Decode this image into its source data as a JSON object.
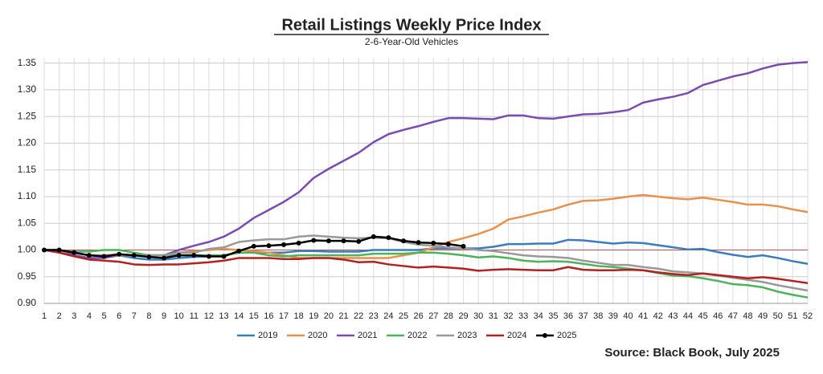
{
  "chart_data": {
    "type": "line",
    "title": "Retail Listings Weekly Price Index",
    "subtitle": "2-6-Year-Old Vehicles",
    "source": "Source: Black Book, July 2025",
    "categories": [
      "1",
      "2",
      "3",
      "4",
      "5",
      "6",
      "7",
      "8",
      "9",
      "10",
      "11",
      "12",
      "13",
      "14",
      "15",
      "16",
      "17",
      "18",
      "19",
      "20",
      "21",
      "22",
      "23",
      "24",
      "25",
      "26",
      "27",
      "28",
      "29",
      "30",
      "31",
      "32",
      "33",
      "34",
      "35",
      "36",
      "37",
      "38",
      "39",
      "40",
      "41",
      "42",
      "43",
      "44",
      "45",
      "46",
      "47",
      "48",
      "49",
      "50",
      "51",
      "52"
    ],
    "ylim": [
      0.9,
      1.36
    ],
    "yticks": [
      {
        "value": 0.9,
        "label": "0.90"
      },
      0.95,
      {
        "value": 1.0,
        "label": "1.00"
      },
      1.05,
      {
        "value": 1.1,
        "label": "1.10"
      },
      1.15,
      {
        "value": 1.2,
        "label": "1.20"
      },
      1.25,
      {
        "value": 1.3,
        "label": "1.30"
      },
      1.35
    ],
    "grid": true,
    "reference_line": {
      "value": 1,
      "color": "#c0504d"
    },
    "legend": "bottom",
    "series": [
      {
        "name": "2019",
        "color": "#3a7dbf",
        "values": [
          1.0,
          0.998,
          0.995,
          0.99,
          0.99,
          0.99,
          0.985,
          0.982,
          0.982,
          0.985,
          0.987,
          0.988,
          0.99,
          0.995,
          0.995,
          0.995,
          0.995,
          0.998,
          0.998,
          0.997,
          0.997,
          0.997,
          1.0,
          1.0,
          1.0,
          1.0,
          1.003,
          1.003,
          1.003,
          1.003,
          1.006,
          1.011,
          1.011,
          1.012,
          1.012,
          1.019,
          1.018,
          1.015,
          1.012,
          1.014,
          1.013,
          1.009,
          1.005,
          1.001,
          1.002,
          0.996,
          0.991,
          0.987,
          0.99,
          0.985,
          0.979,
          0.974
        ]
      },
      {
        "name": "2020",
        "color": "#e8914a",
        "values": [
          1.0,
          0.998,
          0.995,
          0.99,
          0.99,
          0.992,
          0.99,
          0.99,
          0.99,
          0.995,
          0.998,
          1.0,
          1.002,
          1.0,
          0.998,
          0.995,
          0.99,
          0.985,
          0.985,
          0.985,
          0.985,
          0.985,
          0.985,
          0.985,
          0.99,
          0.995,
          1.005,
          1.015,
          1.022,
          1.03,
          1.04,
          1.057,
          1.063,
          1.07,
          1.076,
          1.085,
          1.092,
          1.093,
          1.096,
          1.1,
          1.103,
          1.1,
          1.097,
          1.095,
          1.098,
          1.094,
          1.09,
          1.085,
          1.085,
          1.082,
          1.076,
          1.071
        ]
      },
      {
        "name": "2021",
        "color": "#7a4bb0",
        "values": [
          1.0,
          1.0,
          0.99,
          0.985,
          0.985,
          0.99,
          0.99,
          0.99,
          0.99,
          1.0,
          1.008,
          1.015,
          1.025,
          1.04,
          1.06,
          1.075,
          1.09,
          1.108,
          1.135,
          1.152,
          1.167,
          1.182,
          1.202,
          1.217,
          1.225,
          1.232,
          1.24,
          1.247,
          1.247,
          1.246,
          1.245,
          1.252,
          1.252,
          1.247,
          1.246,
          1.25,
          1.254,
          1.255,
          1.258,
          1.262,
          1.276,
          1.282,
          1.287,
          1.294,
          1.309,
          1.317,
          1.325,
          1.331,
          1.34,
          1.347,
          1.35,
          1.352
        ]
      },
      {
        "name": "2022",
        "color": "#4cb35a",
        "values": [
          1.0,
          0.998,
          0.997,
          0.997,
          1.0,
          1.0,
          0.995,
          0.99,
          0.99,
          0.99,
          0.99,
          0.99,
          0.99,
          0.995,
          0.995,
          0.99,
          0.988,
          0.99,
          0.99,
          0.99,
          0.99,
          0.99,
          0.993,
          0.993,
          0.993,
          0.995,
          0.995,
          0.993,
          0.99,
          0.986,
          0.988,
          0.985,
          0.98,
          0.978,
          0.979,
          0.978,
          0.974,
          0.97,
          0.968,
          0.965,
          0.962,
          0.957,
          0.952,
          0.951,
          0.947,
          0.942,
          0.936,
          0.934,
          0.93,
          0.922,
          0.916,
          0.911
        ]
      },
      {
        "name": "2023",
        "color": "#999999",
        "values": [
          1.0,
          0.998,
          0.995,
          0.99,
          0.99,
          0.99,
          0.99,
          0.99,
          0.99,
          0.995,
          0.995,
          1.002,
          1.005,
          1.015,
          1.018,
          1.02,
          1.02,
          1.025,
          1.027,
          1.025,
          1.023,
          1.022,
          1.023,
          1.022,
          1.015,
          1.01,
          1.008,
          1.005,
          1.003,
          1.0,
          0.998,
          0.994,
          0.99,
          0.988,
          0.987,
          0.985,
          0.98,
          0.976,
          0.972,
          0.972,
          0.968,
          0.965,
          0.96,
          0.958,
          0.956,
          0.952,
          0.948,
          0.944,
          0.94,
          0.934,
          0.929,
          0.924
        ]
      },
      {
        "name": "2024",
        "color": "#b22222",
        "values": [
          1.0,
          0.995,
          0.988,
          0.982,
          0.98,
          0.978,
          0.973,
          0.972,
          0.973,
          0.973,
          0.975,
          0.977,
          0.98,
          0.985,
          0.985,
          0.985,
          0.983,
          0.983,
          0.985,
          0.985,
          0.982,
          0.977,
          0.978,
          0.973,
          0.97,
          0.967,
          0.969,
          0.967,
          0.965,
          0.961,
          0.963,
          0.964,
          0.963,
          0.962,
          0.962,
          0.968,
          0.963,
          0.962,
          0.962,
          0.963,
          0.962,
          0.958,
          0.955,
          0.953,
          0.956,
          0.953,
          0.95,
          0.947,
          0.949,
          0.946,
          0.942,
          0.938
        ]
      },
      {
        "name": "2025",
        "color": "#000000",
        "markers": true,
        "values": [
          1.0,
          1.0,
          0.995,
          0.99,
          0.988,
          0.992,
          0.99,
          0.987,
          0.985,
          0.99,
          0.99,
          0.988,
          0.988,
          0.998,
          1.007,
          1.008,
          1.01,
          1.013,
          1.018,
          1.017,
          1.017,
          1.016,
          1.025,
          1.023,
          1.017,
          1.014,
          1.013,
          1.011,
          1.007,
          null,
          null,
          null,
          null,
          null,
          null,
          null,
          null,
          null,
          null,
          null,
          null,
          null,
          null,
          null,
          null,
          null,
          null,
          null,
          null,
          null,
          null,
          null
        ]
      }
    ]
  }
}
